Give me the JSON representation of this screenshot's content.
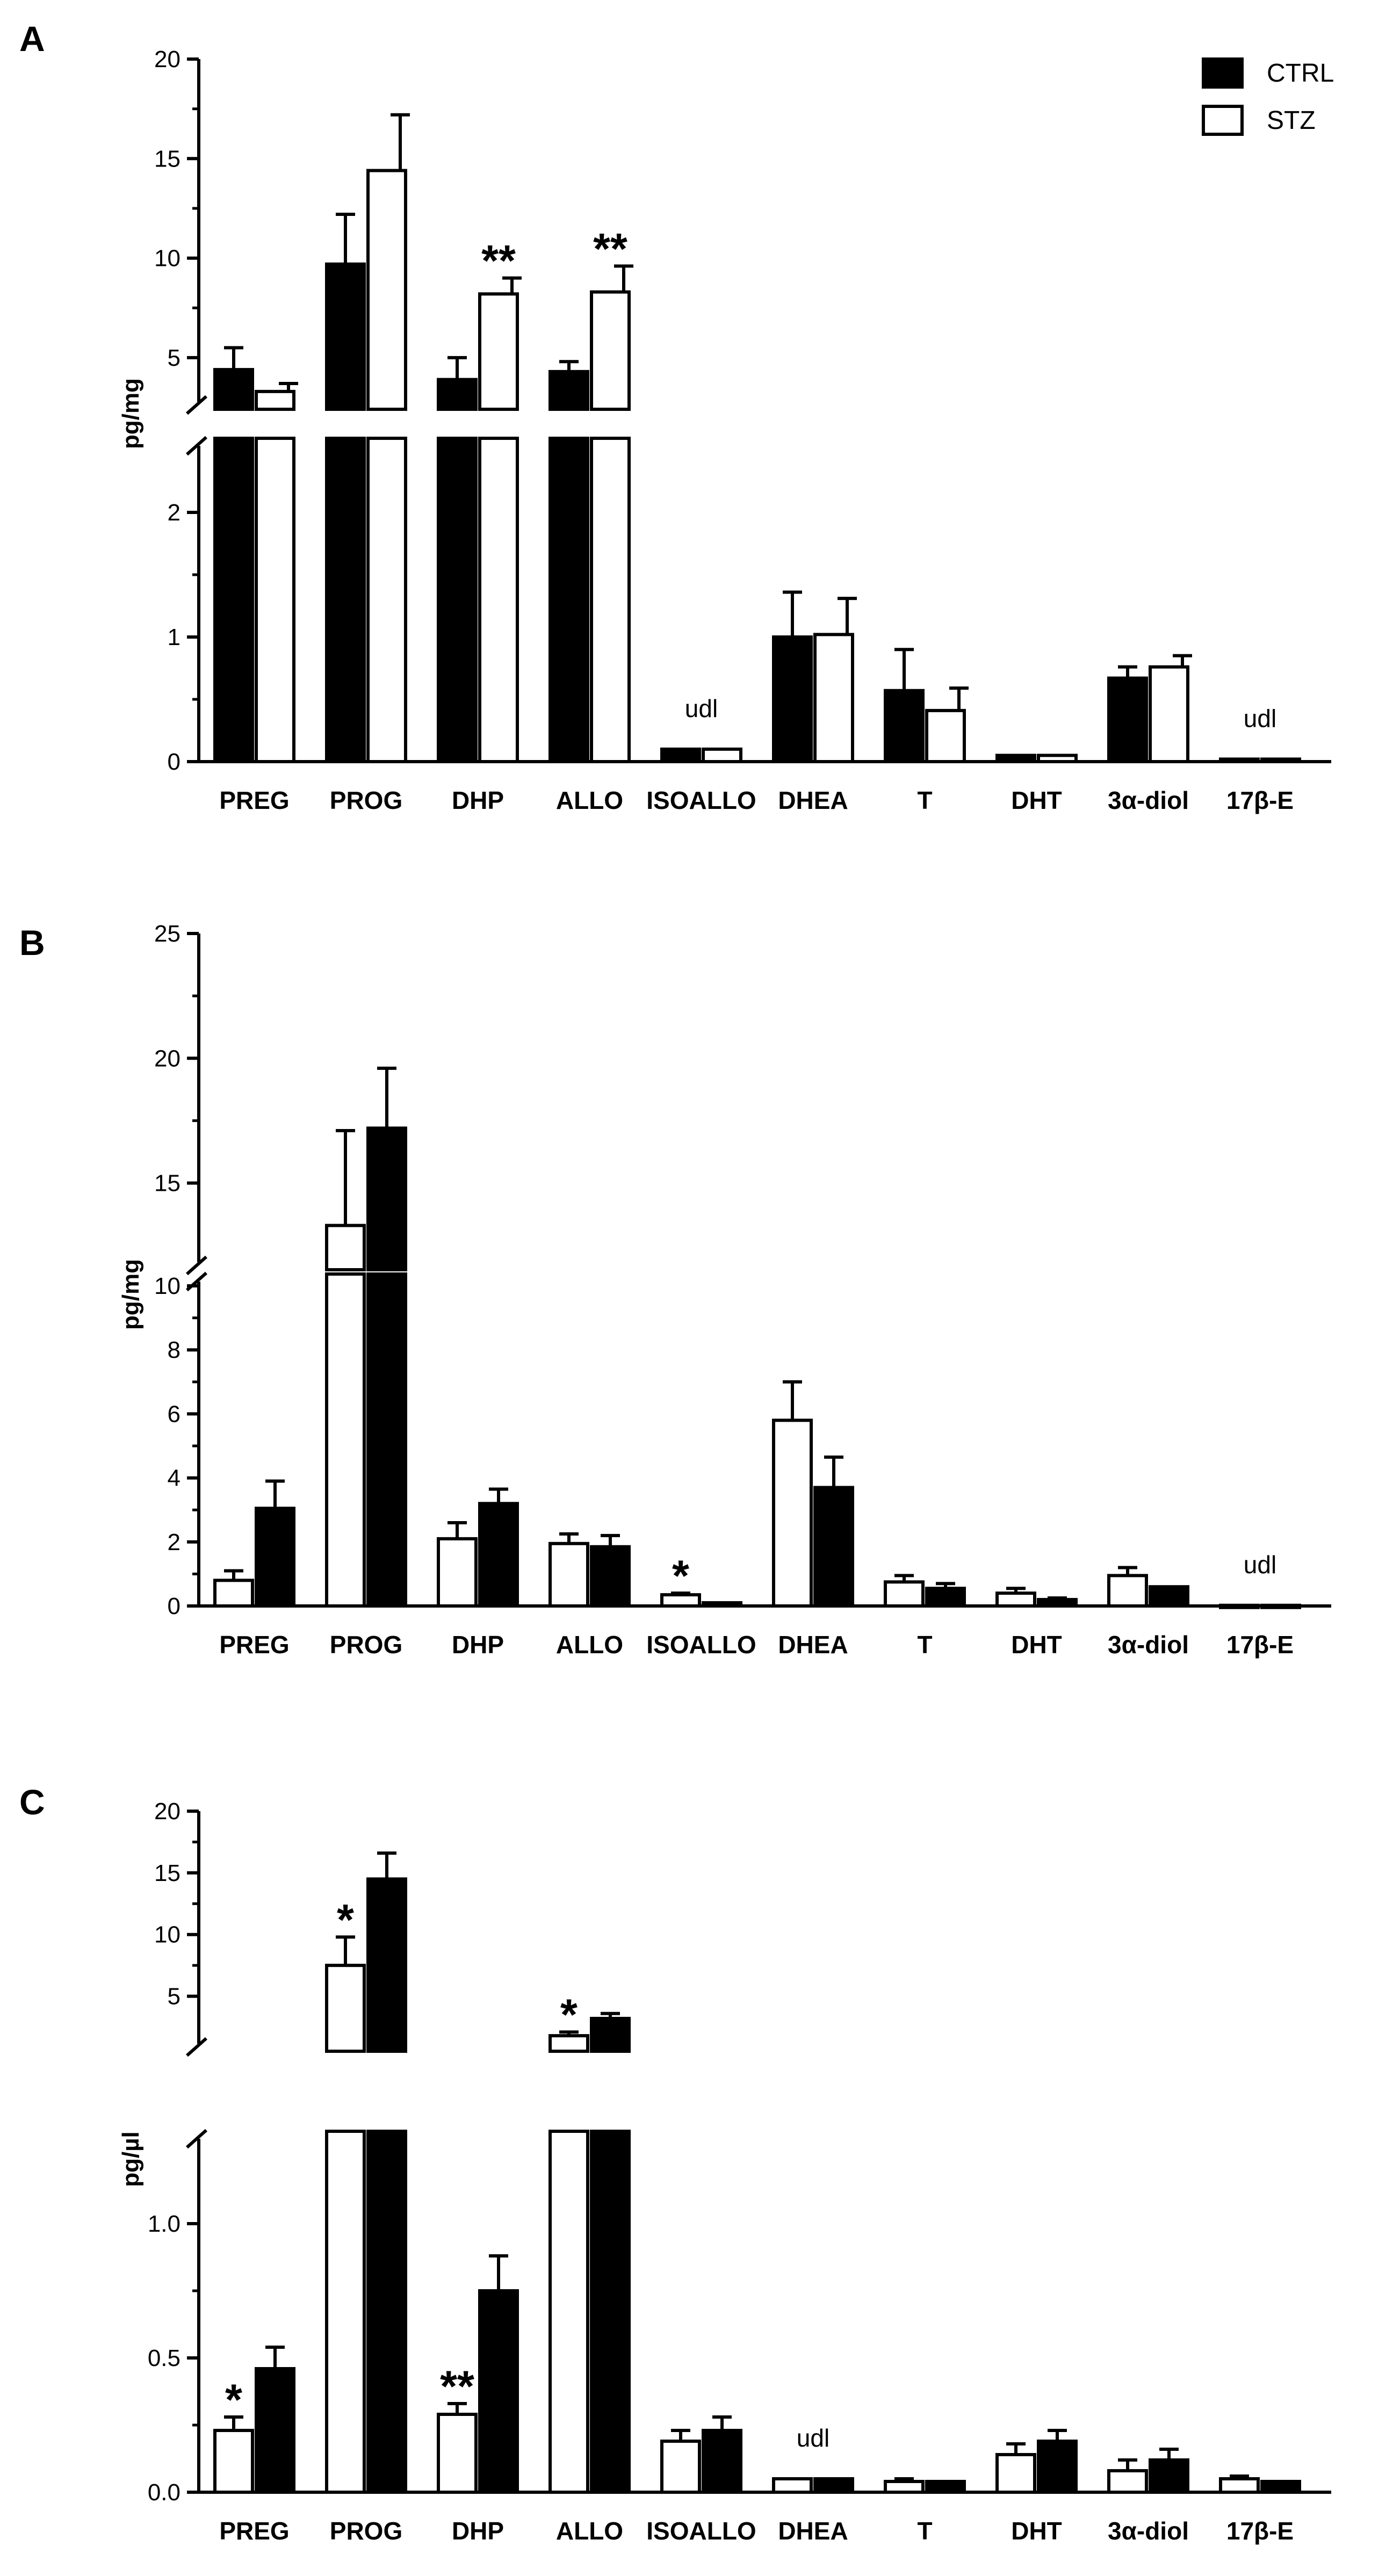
{
  "legend": [
    {
      "label": "CTRL",
      "fill": "#000000"
    },
    {
      "label": "STZ",
      "fill": "#ffffff"
    }
  ],
  "colors": {
    "ctrl": "#000000",
    "stz": "#ffffff",
    "axis": "#000000"
  },
  "chart_data": [
    {
      "type": "bar",
      "panel": "A",
      "ylabel": "pg/mg",
      "categories": [
        "PREG",
        "PROG",
        "DHP",
        "ALLO",
        "ISOALLO",
        "DHEA",
        "T",
        "DHT",
        "3α-diol",
        "17β-E"
      ],
      "order": [
        "CTRL",
        "STZ"
      ],
      "series": [
        {
          "name": "CTRL",
          "values": [
            4.4,
            9.7,
            3.9,
            4.3,
            0.1,
            1.0,
            0.57,
            0.05,
            0.67,
            0.02
          ],
          "errors": [
            1.1,
            2.5,
            1.1,
            0.5,
            0.0,
            0.36,
            0.33,
            0.0,
            0.09,
            0.0
          ]
        },
        {
          "name": "STZ",
          "values": [
            3.3,
            14.4,
            8.2,
            8.3,
            0.1,
            1.02,
            0.41,
            0.05,
            0.76,
            0.02
          ],
          "errors": [
            0.4,
            2.8,
            0.8,
            1.3,
            0.0,
            0.29,
            0.18,
            0.0,
            0.09,
            0.0
          ]
        }
      ],
      "segments": [
        [
          0,
          2.5
        ],
        [
          3,
          20
        ]
      ],
      "yticks": [
        [
          0,
          1,
          2
        ],
        [
          5,
          10,
          15,
          20
        ]
      ],
      "ylim": [
        0,
        20
      ],
      "annotations": [
        {
          "category": "ISOALLO",
          "text": "udl"
        },
        {
          "category": "DHP",
          "series": "STZ",
          "text": "**"
        },
        {
          "category": "ALLO",
          "series": "STZ",
          "text": "**"
        },
        {
          "category": "17β-E",
          "text": "udl"
        }
      ]
    },
    {
      "type": "bar",
      "panel": "B",
      "ylabel": "pg/mg",
      "categories": [
        "PREG",
        "PROG",
        "DHP",
        "ALLO",
        "ISOALLO",
        "DHEA",
        "T",
        "DHT",
        "3α-diol",
        "17β-E"
      ],
      "order": [
        "STZ",
        "CTRL"
      ],
      "series": [
        {
          "name": "CTRL",
          "values": [
            3.05,
            17.2,
            3.2,
            1.85,
            0.1,
            3.7,
            0.55,
            0.2,
            0.6,
            0.02
          ],
          "errors": [
            0.85,
            2.4,
            0.45,
            0.35,
            0.0,
            0.95,
            0.15,
            0.05,
            0.0,
            0.0
          ]
        },
        {
          "name": "STZ",
          "values": [
            0.8,
            13.3,
            2.1,
            1.95,
            0.35,
            5.8,
            0.75,
            0.4,
            0.95,
            0.02
          ],
          "errors": [
            0.3,
            3.8,
            0.5,
            0.3,
            0.05,
            1.2,
            0.2,
            0.15,
            0.25,
            0.0
          ]
        }
      ],
      "segments": [
        [
          0,
          10
        ],
        [
          12,
          25
        ]
      ],
      "yticks": [
        [
          0,
          2,
          4,
          6,
          8,
          10
        ],
        [
          15,
          20,
          25
        ]
      ],
      "ylim": [
        0,
        25
      ],
      "annotations": [
        {
          "category": "ISOALLO",
          "series": "STZ",
          "text": "*"
        },
        {
          "category": "17β-E",
          "text": "udl"
        }
      ]
    },
    {
      "type": "bar",
      "panel": "C",
      "ylabel": "pg/µl",
      "categories": [
        "PREG",
        "PROG",
        "DHP",
        "ALLO",
        "ISOALLO",
        "DHEA",
        "T",
        "DHT",
        "3α-diol",
        "17β-E"
      ],
      "order": [
        "STZ",
        "CTRL"
      ],
      "series": [
        {
          "name": "CTRL",
          "values": [
            0.46,
            14.5,
            0.75,
            3.2,
            0.23,
            0.05,
            0.04,
            0.19,
            0.12,
            0.04
          ],
          "errors": [
            0.08,
            2.1,
            0.13,
            0.4,
            0.05,
            0.0,
            0.0,
            0.04,
            0.04,
            0.0
          ]
        },
        {
          "name": "STZ",
          "values": [
            0.23,
            7.5,
            0.29,
            1.8,
            0.19,
            0.05,
            0.04,
            0.14,
            0.08,
            0.05
          ],
          "errors": [
            0.05,
            2.3,
            0.04,
            0.3,
            0.04,
            0.0,
            0.01,
            0.04,
            0.04,
            0.01
          ]
        }
      ],
      "segments": [
        [
          0,
          1.3
        ],
        [
          1.5,
          20
        ]
      ],
      "yticks": [
        [
          0.0,
          0.5,
          1.0
        ],
        [
          5,
          10,
          15,
          20
        ]
      ],
      "ytick_labels": [
        [
          "0.0",
          "0.5",
          "1.0"
        ],
        [
          "5",
          "10",
          "15",
          "20"
        ]
      ],
      "ylim": [
        0,
        20
      ],
      "annotations": [
        {
          "category": "PREG",
          "series": "STZ",
          "text": "*"
        },
        {
          "category": "PROG",
          "series": "STZ",
          "text": "*"
        },
        {
          "category": "DHP",
          "series": "STZ",
          "text": "**"
        },
        {
          "category": "ALLO",
          "series": "STZ",
          "text": "*"
        },
        {
          "category": "DHEA",
          "text": "udl"
        }
      ]
    }
  ]
}
